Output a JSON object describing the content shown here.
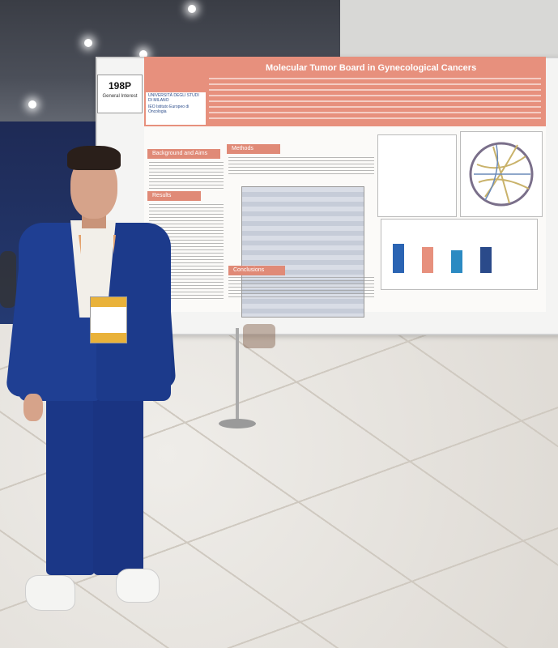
{
  "booth": {
    "number": "198P",
    "category": "General Interest"
  },
  "poster": {
    "title": "Molecular Tumor Board in Gynecological Cancers",
    "institutions": [
      "UNIVERSITÀ DEGLI STUDI DI MILANO",
      "IEO Istituto Europeo di Oncologia"
    ],
    "sections": [
      "Background and Aims",
      "Methods",
      "Results",
      "Conclusions"
    ]
  },
  "colors": {
    "poster_header": "#e7907d",
    "jacket": "#1f3f93",
    "floor": "#e6e3de"
  }
}
